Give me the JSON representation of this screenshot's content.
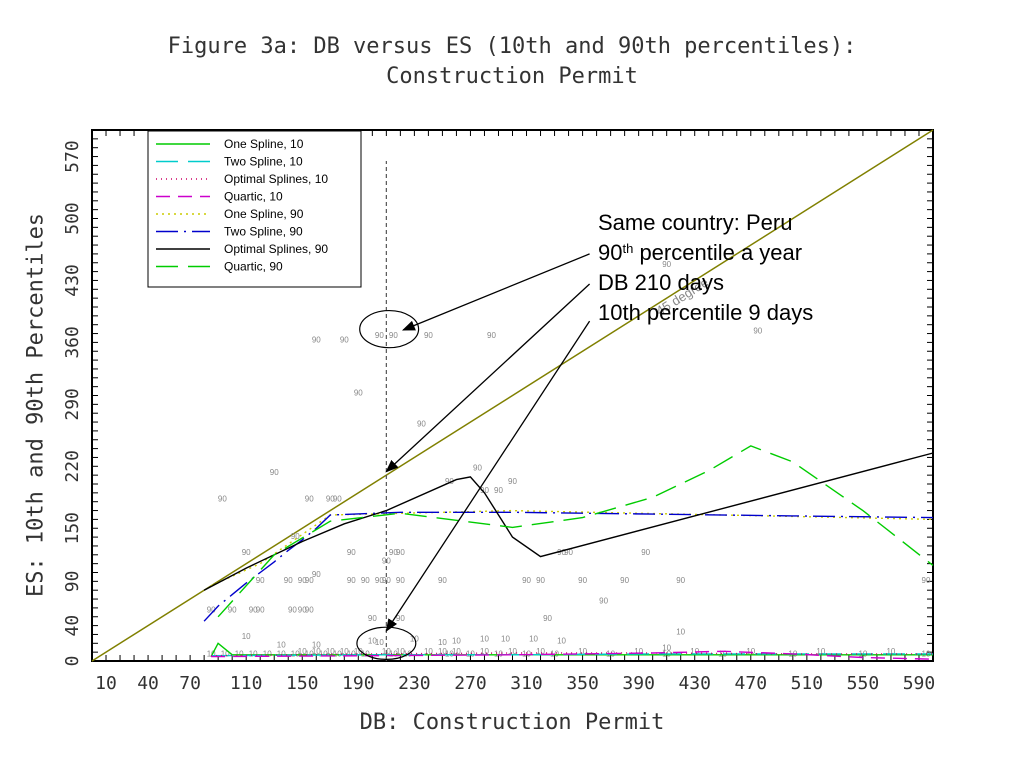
{
  "chart_data": {
    "type": "scatter",
    "title": "Figure 3a:  DB versus ES (10th and 90th percentiles):",
    "subtitle": "Construction Permit",
    "xlabel": "DB:  Construction Permit",
    "ylabel": "ES: 10th and 90th Percentiles",
    "xlim": [
      0,
      600
    ],
    "ylim": [
      0,
      600
    ],
    "xticks": [
      10,
      40,
      70,
      110,
      150,
      190,
      230,
      270,
      310,
      350,
      390,
      430,
      470,
      510,
      550,
      590
    ],
    "yticks": [
      0,
      40,
      90,
      150,
      220,
      290,
      360,
      430,
      500,
      570
    ],
    "grid": false,
    "legend_placement": "top-left",
    "series": [
      {
        "name": "One Spline, 10",
        "color": "#00cc00",
        "dash": "solid",
        "x": [
          85,
          90,
          100,
          150,
          250,
          400,
          600
        ],
        "y": [
          5,
          20,
          7,
          7,
          7,
          7,
          7
        ]
      },
      {
        "name": "Two Spline, 10",
        "color": "#00cccc",
        "dash": "22 10",
        "x": [
          85,
          200,
          300,
          400,
          500,
          600
        ],
        "y": [
          6,
          7,
          7,
          8,
          8,
          8
        ]
      },
      {
        "name": "Optimal Splines, 10",
        "color": "#cc0066",
        "dash": "1 4",
        "x": [
          85,
          200,
          300,
          400,
          500,
          600
        ],
        "y": [
          6,
          8,
          9,
          9,
          8,
          8
        ]
      },
      {
        "name": "Quartic, 10",
        "color": "#cc00cc",
        "dash": "14 8",
        "x": [
          85,
          200,
          300,
          400,
          450,
          500,
          550,
          600
        ],
        "y": [
          5,
          6,
          7,
          9,
          11,
          8,
          4,
          2
        ]
      },
      {
        "name": "One Spline, 90",
        "color": "#cccc00",
        "dash": "2 4",
        "x": [
          85,
          120,
          170,
          300,
          600
        ],
        "y": [
          85,
          110,
          165,
          170,
          160
        ]
      },
      {
        "name": "Two Spline, 90",
        "color": "#0000cc",
        "dash": "22 6 2 6",
        "x": [
          80,
          90,
          100,
          110,
          120,
          130,
          140,
          150,
          160,
          170,
          220,
          300,
          400,
          500,
          600
        ],
        "y": [
          45,
          62,
          75,
          88,
          100,
          112,
          125,
          137,
          150,
          165,
          168,
          168,
          166,
          164,
          162
        ]
      },
      {
        "name": "Optimal Splines, 90",
        "color": "#000000",
        "dash": "solid",
        "x": [
          80,
          110,
          150,
          180,
          210,
          260,
          270,
          280,
          300,
          320,
          600
        ],
        "y": [
          80,
          105,
          135,
          155,
          170,
          205,
          208,
          190,
          140,
          118,
          235
        ]
      },
      {
        "name": "Quartic, 90",
        "color": "#00cc00",
        "dash": "22 10",
        "x": [
          90,
          130,
          170,
          220,
          300,
          350,
          400,
          440,
          470,
          500,
          550,
          600
        ],
        "y": [
          50,
          120,
          158,
          167,
          151,
          162,
          185,
          215,
          243,
          225,
          170,
          108
        ]
      }
    ],
    "reference_line": {
      "label": "45 degree",
      "color": "#808000",
      "x": [
        0,
        600
      ],
      "y": [
        0,
        600
      ]
    },
    "vertical_marker": {
      "x": 210,
      "y_range": [
        0,
        565
      ],
      "color": "#555555"
    },
    "ellipses": [
      {
        "cx": 212,
        "cy": 375,
        "rx": 15,
        "ry": 15
      },
      {
        "cx": 210,
        "cy": 20,
        "rx": 15,
        "ry": 13
      }
    ],
    "annotation": {
      "lines": [
        {
          "text": "Same country: Peru"
        },
        {
          "text": "90",
          "sup": "th",
          "rest": " percentile a year"
        },
        {
          "text": "DB 210 days"
        },
        {
          "text": "10th percentile 9 days"
        }
      ],
      "arrows": [
        {
          "from": [
            355,
            460
          ],
          "to": [
            222,
            374
          ]
        },
        {
          "from": [
            355,
            426
          ],
          "to": [
            210,
            214
          ]
        },
        {
          "from": [
            355,
            384
          ],
          "to": [
            210,
            34
          ]
        }
      ],
      "degree_label": "45 degree"
    },
    "labels_90": [
      {
        "x": 85,
        "y": 55
      },
      {
        "x": 100,
        "y": 55
      },
      {
        "x": 120,
        "y": 55
      },
      {
        "x": 143,
        "y": 55
      },
      {
        "x": 150,
        "y": 55
      },
      {
        "x": 155,
        "y": 55
      },
      {
        "x": 93,
        "y": 180
      },
      {
        "x": 110,
        "y": 120
      },
      {
        "x": 120,
        "y": 88
      },
      {
        "x": 140,
        "y": 88
      },
      {
        "x": 150,
        "y": 88
      },
      {
        "x": 155,
        "y": 88
      },
      {
        "x": 160,
        "y": 95
      },
      {
        "x": 145,
        "y": 138
      },
      {
        "x": 155,
        "y": 180
      },
      {
        "x": 130,
        "y": 210
      },
      {
        "x": 170,
        "y": 180
      },
      {
        "x": 175,
        "y": 180
      },
      {
        "x": 185,
        "y": 120
      },
      {
        "x": 185,
        "y": 88
      },
      {
        "x": 195,
        "y": 88
      },
      {
        "x": 205,
        "y": 88
      },
      {
        "x": 210,
        "y": 88
      },
      {
        "x": 220,
        "y": 88
      },
      {
        "x": 190,
        "y": 300
      },
      {
        "x": 160,
        "y": 360
      },
      {
        "x": 180,
        "y": 360
      },
      {
        "x": 205,
        "y": 365
      },
      {
        "x": 215,
        "y": 365
      },
      {
        "x": 240,
        "y": 365
      },
      {
        "x": 285,
        "y": 365
      },
      {
        "x": 215,
        "y": 120
      },
      {
        "x": 220,
        "y": 120
      },
      {
        "x": 210,
        "y": 110
      },
      {
        "x": 250,
        "y": 88
      },
      {
        "x": 235,
        "y": 265
      },
      {
        "x": 255,
        "y": 200
      },
      {
        "x": 275,
        "y": 215
      },
      {
        "x": 280,
        "y": 190
      },
      {
        "x": 290,
        "y": 190
      },
      {
        "x": 300,
        "y": 200
      },
      {
        "x": 310,
        "y": 88
      },
      {
        "x": 320,
        "y": 88
      },
      {
        "x": 335,
        "y": 120
      },
      {
        "x": 340,
        "y": 120
      },
      {
        "x": 350,
        "y": 88
      },
      {
        "x": 325,
        "y": 45
      },
      {
        "x": 365,
        "y": 65
      },
      {
        "x": 380,
        "y": 88
      },
      {
        "x": 395,
        "y": 120
      },
      {
        "x": 420,
        "y": 88
      },
      {
        "x": 410,
        "y": 445
      },
      {
        "x": 475,
        "y": 370
      },
      {
        "x": 595,
        "y": 88
      },
      {
        "x": 200,
        "y": 45
      },
      {
        "x": 220,
        "y": 45
      },
      {
        "x": 115,
        "y": 55
      }
    ],
    "labels_10": [
      {
        "x": 85,
        "y": 5
      },
      {
        "x": 95,
        "y": 5
      },
      {
        "x": 105,
        "y": 5
      },
      {
        "x": 115,
        "y": 5
      },
      {
        "x": 125,
        "y": 5
      },
      {
        "x": 135,
        "y": 5
      },
      {
        "x": 145,
        "y": 5
      },
      {
        "x": 150,
        "y": 8
      },
      {
        "x": 155,
        "y": 5
      },
      {
        "x": 160,
        "y": 8
      },
      {
        "x": 165,
        "y": 5
      },
      {
        "x": 170,
        "y": 8
      },
      {
        "x": 175,
        "y": 5
      },
      {
        "x": 180,
        "y": 8
      },
      {
        "x": 185,
        "y": 5
      },
      {
        "x": 190,
        "y": 8
      },
      {
        "x": 195,
        "y": 5
      },
      {
        "x": 200,
        "y": 20
      },
      {
        "x": 205,
        "y": 18
      },
      {
        "x": 210,
        "y": 8
      },
      {
        "x": 215,
        "y": 5
      },
      {
        "x": 220,
        "y": 8
      },
      {
        "x": 225,
        "y": 5
      },
      {
        "x": 240,
        "y": 8
      },
      {
        "x": 250,
        "y": 8
      },
      {
        "x": 255,
        "y": 5
      },
      {
        "x": 260,
        "y": 8
      },
      {
        "x": 270,
        "y": 5
      },
      {
        "x": 280,
        "y": 8
      },
      {
        "x": 290,
        "y": 5
      },
      {
        "x": 300,
        "y": 8
      },
      {
        "x": 310,
        "y": 5
      },
      {
        "x": 320,
        "y": 8
      },
      {
        "x": 330,
        "y": 5
      },
      {
        "x": 350,
        "y": 8
      },
      {
        "x": 370,
        "y": 5
      },
      {
        "x": 390,
        "y": 8
      },
      {
        "x": 410,
        "y": 5
      },
      {
        "x": 430,
        "y": 8
      },
      {
        "x": 450,
        "y": 5
      },
      {
        "x": 470,
        "y": 8
      },
      {
        "x": 500,
        "y": 5
      },
      {
        "x": 520,
        "y": 8
      },
      {
        "x": 550,
        "y": 5
      },
      {
        "x": 570,
        "y": 8
      },
      {
        "x": 595,
        "y": 5
      },
      {
        "x": 110,
        "y": 25
      },
      {
        "x": 135,
        "y": 15
      },
      {
        "x": 160,
        "y": 15
      },
      {
        "x": 230,
        "y": 22
      },
      {
        "x": 250,
        "y": 18
      },
      {
        "x": 280,
        "y": 22
      },
      {
        "x": 295,
        "y": 22
      },
      {
        "x": 315,
        "y": 22
      },
      {
        "x": 335,
        "y": 20
      },
      {
        "x": 260,
        "y": 20
      },
      {
        "x": 420,
        "y": 30
      },
      {
        "x": 410,
        "y": 12
      }
    ],
    "labels_10_text": "10",
    "labels_90_text": "90"
  }
}
